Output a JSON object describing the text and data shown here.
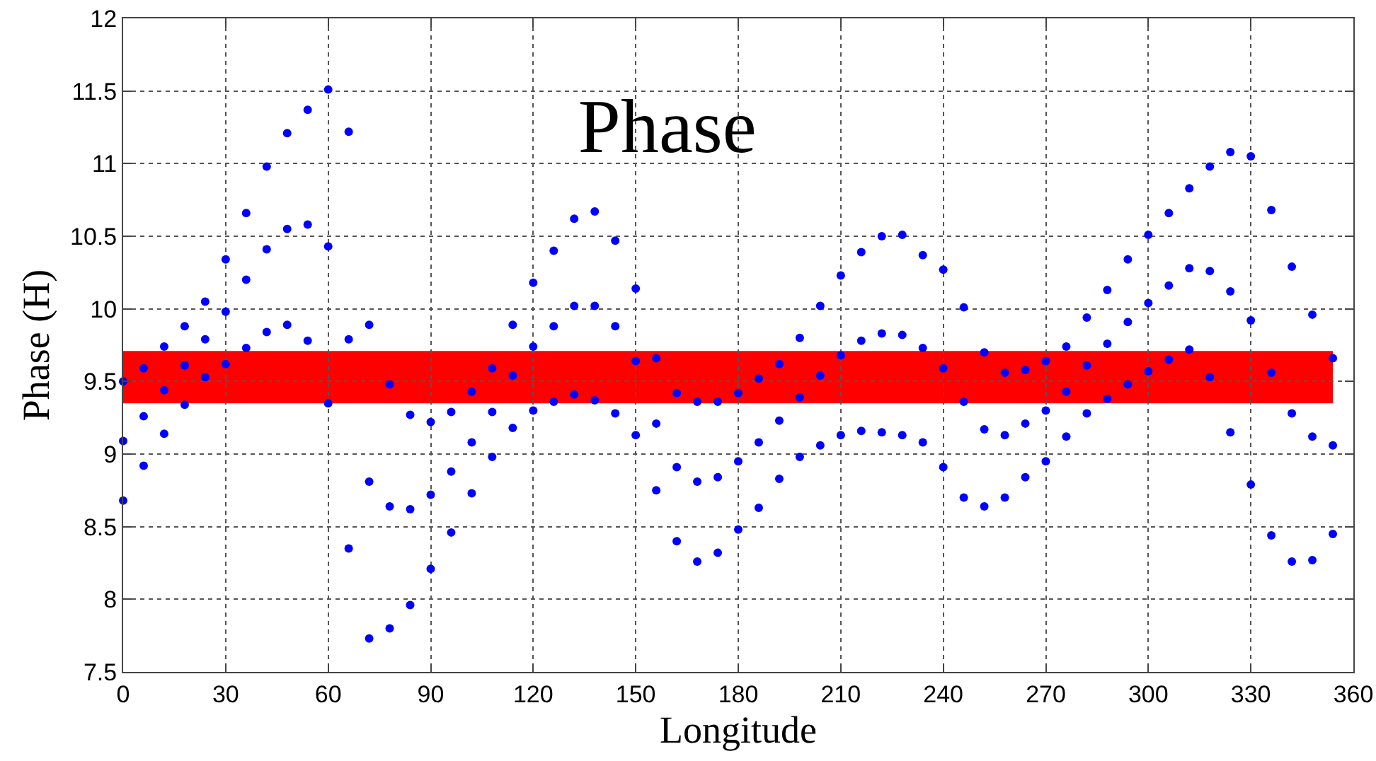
{
  "chart_data": {
    "type": "scatter",
    "title": "Phase",
    "xlabel": "Longitude",
    "ylabel": "Phase (H)",
    "x": [
      0,
      0,
      0,
      6,
      6,
      6,
      12,
      12,
      12,
      18,
      18,
      18,
      24,
      24,
      24,
      30,
      30,
      30,
      36,
      36,
      36,
      42,
      42,
      42,
      48,
      48,
      48,
      54,
      54,
      54,
      60,
      60,
      60,
      66,
      66,
      66,
      72,
      72,
      72,
      78,
      78,
      78,
      84,
      84,
      84,
      90,
      90,
      90,
      96,
      96,
      96,
      102,
      102,
      102,
      108,
      108,
      108,
      114,
      114,
      114,
      120,
      120,
      120,
      126,
      126,
      126,
      132,
      132,
      132,
      138,
      138,
      138,
      144,
      144,
      144,
      150,
      150,
      150,
      156,
      156,
      156,
      162,
      162,
      162,
      168,
      168,
      168,
      174,
      174,
      174,
      180,
      180,
      180,
      186,
      186,
      186,
      192,
      192,
      192,
      198,
      198,
      198,
      204,
      204,
      204,
      210,
      210,
      210,
      216,
      216,
      216,
      222,
      222,
      222,
      228,
      228,
      228,
      234,
      234,
      234,
      240,
      240,
      240,
      246,
      246,
      246,
      252,
      252,
      252,
      258,
      258,
      258,
      264,
      264,
      264,
      270,
      270,
      270,
      276,
      276,
      276,
      282,
      282,
      282,
      288,
      288,
      288,
      294,
      294,
      294,
      300,
      300,
      300,
      306,
      306,
      306,
      312,
      312,
      312,
      318,
      318,
      318,
      324,
      324,
      324,
      330,
      330,
      330,
      336,
      336,
      336,
      342,
      342,
      342,
      348,
      348,
      348,
      354,
      354,
      354
    ],
    "series": [
      {
        "color": "#0000ff",
        "values": [
          8.68,
          9.09,
          9.5,
          8.92,
          9.26,
          9.59,
          9.14,
          9.44,
          9.74,
          9.34,
          9.61,
          9.88,
          9.53,
          9.79,
          10.05,
          9.62,
          9.98,
          10.34,
          9.73,
          10.2,
          10.66,
          9.84,
          10.41,
          10.98,
          9.89,
          10.55,
          11.21,
          9.78,
          10.58,
          11.37,
          9.35,
          10.43,
          11.51,
          8.35,
          9.79,
          11.22,
          7.73,
          8.81,
          9.89,
          7.8,
          8.64,
          9.48,
          7.96,
          8.62,
          9.27,
          8.21,
          8.72,
          9.22,
          8.46,
          8.88,
          9.29,
          8.73,
          9.08,
          9.43,
          8.98,
          9.29,
          9.59,
          9.18,
          9.54,
          9.89,
          9.3,
          9.74,
          10.18,
          9.36,
          9.88,
          10.4,
          9.41,
          10.02,
          10.62,
          9.37,
          10.02,
          10.67,
          9.28,
          9.88,
          10.47,
          9.13,
          9.64,
          10.14,
          8.75,
          9.21,
          9.66,
          8.4,
          8.91,
          9.42,
          8.26,
          8.81,
          9.36,
          8.32,
          8.84,
          9.36,
          8.48,
          8.95,
          9.42,
          8.63,
          9.08,
          9.52,
          8.83,
          9.23,
          9.62,
          8.98,
          9.39,
          9.8,
          9.06,
          9.54,
          10.02,
          9.13,
          9.68,
          10.23,
          9.16,
          9.78,
          10.39,
          9.15,
          9.83,
          10.5,
          9.13,
          9.82,
          10.51,
          9.08,
          9.73,
          10.37,
          8.91,
          9.59,
          10.27,
          8.7,
          9.36,
          10.01,
          8.64,
          9.17,
          9.7,
          8.7,
          9.13,
          9.56,
          8.84,
          9.21,
          9.58,
          8.95,
          9.3,
          9.64,
          9.12,
          9.43,
          9.74,
          9.28,
          9.61,
          9.94,
          9.38,
          9.76,
          10.13,
          9.48,
          9.91,
          10.34,
          9.57,
          10.04,
          10.51,
          9.65,
          10.16,
          10.66,
          9.72,
          10.28,
          10.83,
          9.53,
          10.26,
          10.98,
          9.15,
          10.12,
          11.08,
          8.79,
          9.92,
          11.05,
          8.44,
          9.56,
          10.68,
          8.26,
          9.28,
          10.29,
          8.27,
          9.12,
          9.96,
          8.45,
          9.06,
          9.66
        ]
      }
    ],
    "bands": [
      {
        "axis": "y",
        "from": 9.35,
        "to": 9.71,
        "color": "#ff0000"
      }
    ],
    "xlim": [
      0,
      360
    ],
    "xticks": [
      0,
      30,
      60,
      90,
      120,
      150,
      180,
      210,
      240,
      270,
      300,
      330,
      360
    ],
    "ylim": [
      7.5,
      12
    ],
    "yticks": [
      7.5,
      8,
      8.5,
      9,
      9.5,
      10,
      10.5,
      11,
      11.5,
      12
    ],
    "grid": true,
    "marker": "circle"
  }
}
